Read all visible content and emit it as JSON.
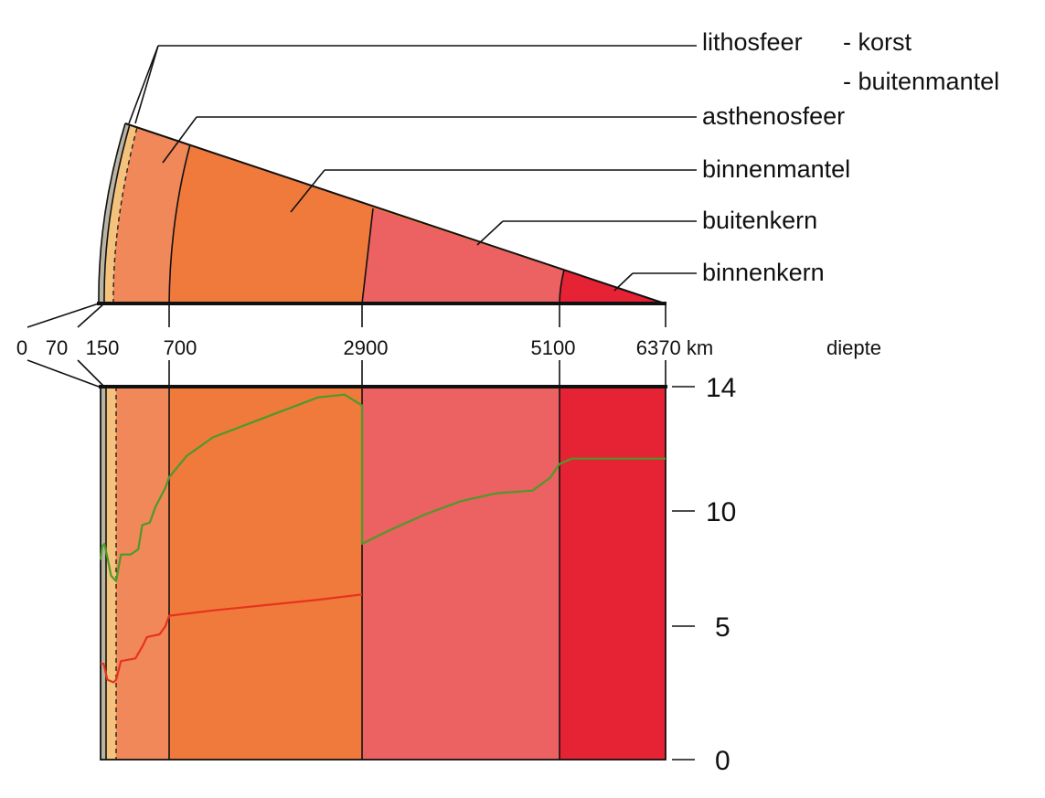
{
  "layers": {
    "lithosfeer": "lithosfeer",
    "lithosfeer_sub1": "- korst",
    "lithosfeer_sub2": "- buitenmantel",
    "asthenosfeer": "asthenosfeer",
    "binnenmantel": "binnenmantel",
    "buitenkern": "buitenkern",
    "binnenkern": "binnenkern"
  },
  "depth_axis": {
    "ticks": [
      "0",
      "70",
      "150",
      "700",
      "2900",
      "5100",
      "6370 km"
    ],
    "label": "diepte"
  },
  "colors": {
    "korst": "#b9b3a3",
    "lithosphere_mantle": "#f5c27d",
    "asthenosfeer": "#f0885a",
    "binnenmantel": "#ef7a3c",
    "buitenkern": "#ec6161",
    "binnenkern": "#e62235",
    "green_curve": "#4c9a2a",
    "red_curve": "#e8331c"
  },
  "chart_data": {
    "type": "line",
    "x_label": "diepte",
    "x_unit": "km",
    "x_ticks": [
      0,
      70,
      150,
      700,
      2900,
      5100,
      6370
    ],
    "ylim": [
      0,
      14
    ],
    "y_ticks": [
      "0",
      "5",
      "10",
      "14"
    ],
    "grid": false,
    "layers": [
      {
        "name": "asthenosfeer",
        "from_km": 150,
        "to_km": 700
      },
      {
        "name": "binnenmantel",
        "from_km": 700,
        "to_km": 2900
      },
      {
        "name": "buitenkern",
        "from_km": 2900,
        "to_km": 5100
      },
      {
        "name": "binnenkern",
        "from_km": 5100,
        "to_km": 6370
      }
    ],
    "series": [
      {
        "color": "#4c9a2a",
        "points": [
          [
            0,
            7.5
          ],
          [
            20,
            8.0
          ],
          [
            50,
            8.1
          ],
          [
            80,
            7.6
          ],
          [
            110,
            6.9
          ],
          [
            150,
            6.7
          ],
          [
            200,
            7.7
          ],
          [
            300,
            7.7
          ],
          [
            380,
            7.9
          ],
          [
            420,
            8.8
          ],
          [
            500,
            8.9
          ],
          [
            560,
            9.5
          ],
          [
            660,
            10.2
          ],
          [
            700,
            10.6
          ],
          [
            900,
            11.4
          ],
          [
            1200,
            12.1
          ],
          [
            1600,
            12.6
          ],
          [
            2000,
            13.1
          ],
          [
            2400,
            13.6
          ],
          [
            2700,
            13.7
          ],
          [
            2850,
            13.4
          ],
          [
            2900,
            13.3
          ],
          [
            2900,
            8.1
          ],
          [
            3200,
            8.6
          ],
          [
            3600,
            9.2
          ],
          [
            4000,
            9.7
          ],
          [
            4400,
            10.0
          ],
          [
            4800,
            10.1
          ],
          [
            5000,
            10.6
          ],
          [
            5100,
            11.1
          ],
          [
            5250,
            11.3
          ],
          [
            6370,
            11.3
          ]
        ]
      },
      {
        "color": "#e8331c",
        "points": [
          [
            0,
            3.6
          ],
          [
            40,
            3.6
          ],
          [
            80,
            3.0
          ],
          [
            130,
            2.9
          ],
          [
            150,
            3.0
          ],
          [
            200,
            3.7
          ],
          [
            350,
            3.8
          ],
          [
            430,
            4.3
          ],
          [
            470,
            4.6
          ],
          [
            600,
            4.7
          ],
          [
            660,
            5.0
          ],
          [
            700,
            5.4
          ],
          [
            1200,
            5.6
          ],
          [
            1800,
            5.8
          ],
          [
            2400,
            6.0
          ],
          [
            2900,
            6.2
          ]
        ]
      }
    ]
  }
}
